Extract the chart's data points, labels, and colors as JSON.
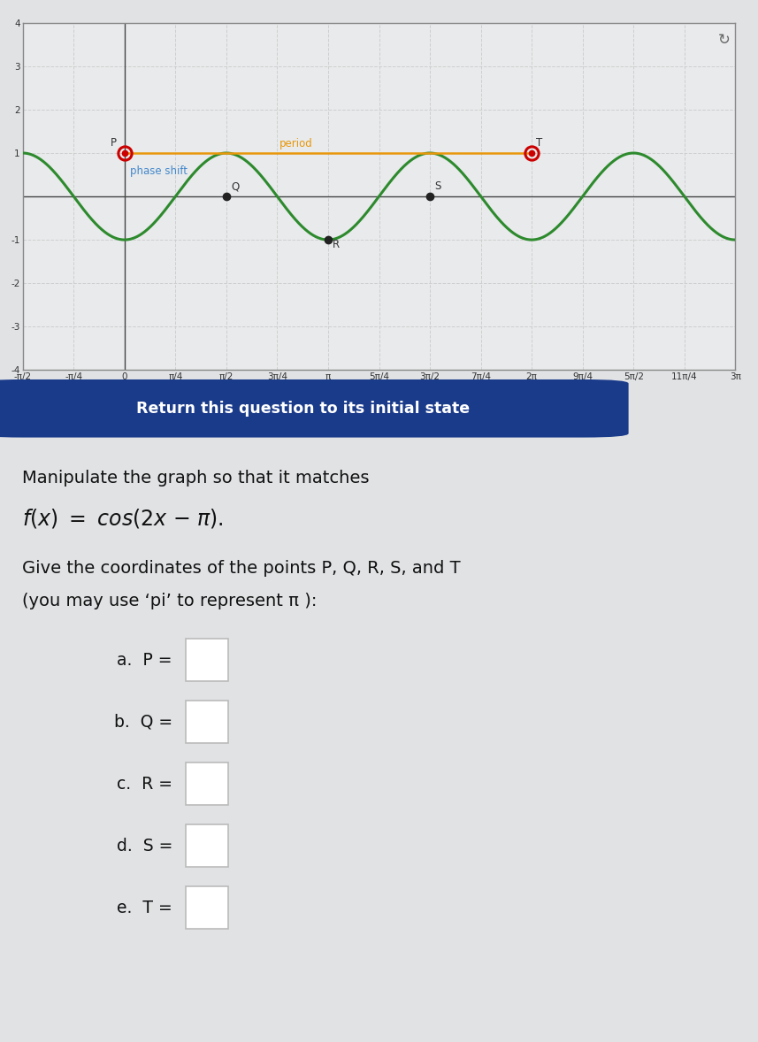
{
  "plot_bg": "#e8eaeb",
  "outer_bg": "#e0e2e4",
  "grid_color": "#cccccc",
  "curve_color": "#2d8a2d",
  "curve_linewidth": 2.2,
  "period_line_color": "#e8970a",
  "period_line_y": 1.0,
  "period_line_x0": 0.0,
  "period_line_x1": 6.283185307,
  "period_label": "period",
  "period_label_color": "#e8970a",
  "phase_shift_label": "phase shift",
  "phase_shift_label_color": "#4488cc",
  "xmin": -1.5707963268,
  "xmax": 9.42477796077,
  "ymin": -4,
  "ymax": 4,
  "xticks_values": [
    -1.5707963268,
    -0.7853981634,
    0,
    0.7853981634,
    1.5707963268,
    2.3561944902,
    3.1415926536,
    3.926990817,
    4.7123889804,
    5.4977871438,
    6.2831853072,
    7.0685834706,
    7.853981634,
    8.6393797974,
    9.4247779608
  ],
  "xtick_labels": [
    "-π/2",
    "-π/4",
    "0",
    "π/4",
    "π/2",
    "3π/4",
    "π",
    "5π/4",
    "3π/2",
    "7π/4",
    "2π",
    "9π/4",
    "5π/2",
    "11π/4",
    "3π"
  ],
  "yticks": [
    -4,
    -3,
    -2,
    -1,
    1,
    2,
    3,
    4
  ],
  "P": [
    0.0,
    1.0
  ],
  "Q": [
    1.5707963268,
    0.0
  ],
  "R": [
    3.1415926536,
    -1.0
  ],
  "S": [
    4.7123889804,
    0.0
  ],
  "T": [
    6.2831853072,
    1.0
  ],
  "point_color": "#222222",
  "P_color": "#cc0000",
  "T_color": "#cc0000",
  "button_bg": "#1a3a8a",
  "button_text": "Return this question to its initial state",
  "button_text_color": "#ffffff",
  "main_text_1": "Manipulate the graph so that it matches",
  "instruction_text": "Give the coordinates of the points P, Q, R, S, and T",
  "instruction_text2": "(you may use ‘pi’ to represent π ):",
  "answer_labels": [
    "a.  P =",
    "b.  Q =",
    "c.  R =",
    "d.  S =",
    "e.  T ="
  ]
}
